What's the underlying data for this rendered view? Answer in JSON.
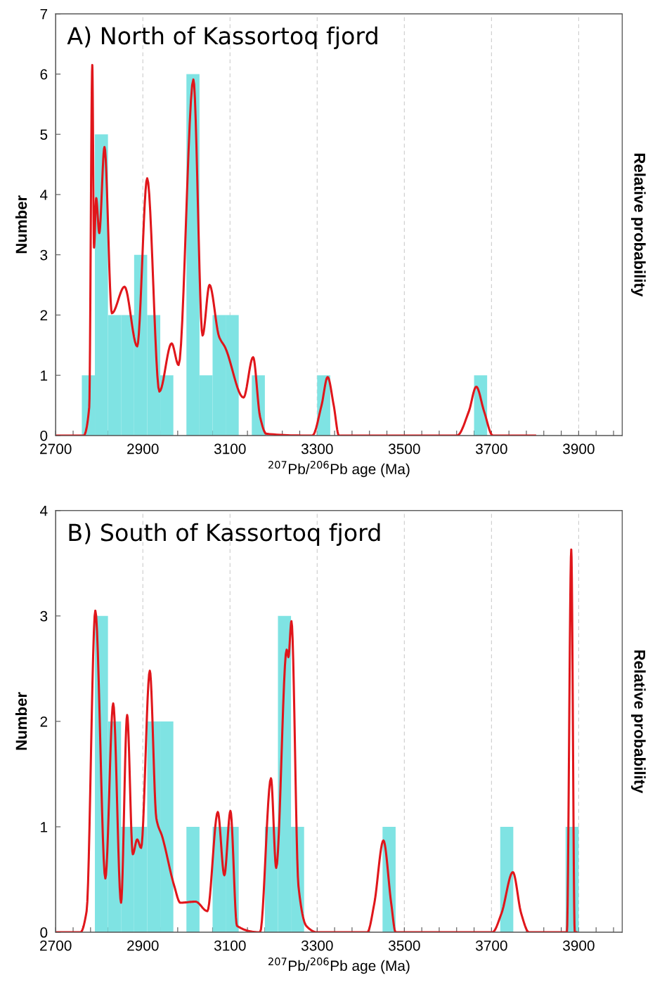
{
  "chart_data": [
    {
      "type": "histogram",
      "title": "A) North of Kassortoq fjord",
      "xlabel": "$^{207}$Pb/$^{206}$Pb age (Ma)",
      "ylabel": "Number",
      "y2label": "Relative probability",
      "xlim": [
        2700,
        4000
      ],
      "ylim": [
        0,
        7
      ],
      "xticks": [
        2700,
        {
          "value": 2740,
          "label": null
        },
        {
          "value": 2780,
          "label": null
        },
        {
          "value": 2820,
          "label": null
        },
        {
          "value": 2860,
          "label": null
        },
        2900,
        {
          "value": 2940,
          "label": null
        },
        {
          "value": 2980,
          "label": null
        },
        {
          "value": 3020,
          "label": null
        },
        {
          "value": 3060,
          "label": null
        },
        3100,
        {
          "value": 3140,
          "label": null
        },
        {
          "value": 3180,
          "label": null
        },
        {
          "value": 3220,
          "label": null
        },
        {
          "value": 3260,
          "label": null
        },
        3300,
        {
          "value": 3340,
          "label": null
        },
        {
          "value": 3380,
          "label": null
        },
        {
          "value": 3420,
          "label": null
        },
        {
          "value": 3460,
          "label": null
        },
        3500,
        {
          "value": 3540,
          "label": null
        },
        {
          "value": 3580,
          "label": null
        },
        {
          "value": 3620,
          "label": null
        },
        {
          "value": 3660,
          "label": null
        },
        3700,
        {
          "value": 3740,
          "label": null
        },
        {
          "value": 3780,
          "label": null
        },
        {
          "value": 3820,
          "label": null
        },
        {
          "value": 3860,
          "label": null
        },
        3900,
        {
          "value": 3940,
          "label": null
        },
        {
          "value": 3980,
          "label": null
        }
      ],
      "yticks": [
        0,
        1,
        2,
        3,
        4,
        5,
        6,
        7
      ],
      "grid": "x",
      "series": [
        {
          "type": "histogram",
          "color": "#7fe3e3",
          "bins": [
            2760,
            2790,
            2820,
            2850,
            2880,
            2910,
            2940,
            2970,
            3000,
            3030,
            3060,
            3090,
            3120,
            3150,
            3180,
            3210,
            3240,
            3270,
            3300,
            3330,
            3360,
            3390,
            3420,
            3450,
            3480,
            3510,
            3540,
            3570,
            3600,
            3630,
            3660,
            3690
          ],
          "values": [
            1,
            5,
            2,
            2,
            3,
            2,
            1,
            0,
            6,
            1,
            2,
            2,
            0,
            1,
            0,
            0,
            0,
            0,
            1,
            0,
            0,
            0,
            0,
            0,
            0,
            0,
            0,
            0,
            0,
            0,
            1
          ]
        },
        {
          "type": "line",
          "color": "#e0161b",
          "x": [
            2700,
            2764,
            2777,
            2784,
            2788,
            2793,
            2800,
            2812,
            2829,
            2858,
            2887,
            2910,
            2938,
            2966,
            2982,
            3016,
            3037,
            3053,
            3075,
            3089,
            3131,
            3153,
            3169,
            3183,
            3280,
            3289,
            3310,
            3324,
            3338,
            3350,
            3621,
            3648,
            3665,
            3683,
            3703,
            3800
          ],
          "values": [
            0,
            0,
            0.47,
            6.15,
            3.12,
            3.94,
            3.36,
            4.79,
            2.03,
            2.47,
            1.48,
            4.27,
            0.73,
            1.53,
            1.17,
            5.91,
            1.66,
            2.5,
            1.64,
            1.46,
            0.63,
            1.3,
            0.31,
            0.03,
            0,
            0,
            0.5,
            0.97,
            0.5,
            0,
            0,
            0.4,
            0.81,
            0.4,
            0,
            0
          ]
        }
      ]
    },
    {
      "type": "histogram",
      "title": "B) South of Kassortoq fjord",
      "xlabel": "$^{207}$Pb/$^{206}$Pb age (Ma)",
      "ylabel": "Number",
      "y2label": "Relative probability",
      "xlim": [
        2700,
        4000
      ],
      "ylim": [
        0,
        4
      ],
      "xticks": [
        2700,
        {
          "value": 2740,
          "label": null
        },
        {
          "value": 2780,
          "label": null
        },
        {
          "value": 2820,
          "label": null
        },
        {
          "value": 2860,
          "label": null
        },
        2900,
        {
          "value": 2940,
          "label": null
        },
        {
          "value": 2980,
          "label": null
        },
        {
          "value": 3020,
          "label": null
        },
        {
          "value": 3060,
          "label": null
        },
        3100,
        {
          "value": 3140,
          "label": null
        },
        {
          "value": 3180,
          "label": null
        },
        {
          "value": 3220,
          "label": null
        },
        {
          "value": 3260,
          "label": null
        },
        3300,
        {
          "value": 3340,
          "label": null
        },
        {
          "value": 3380,
          "label": null
        },
        {
          "value": 3420,
          "label": null
        },
        {
          "value": 3460,
          "label": null
        },
        3500,
        {
          "value": 3540,
          "label": null
        },
        {
          "value": 3580,
          "label": null
        },
        {
          "value": 3620,
          "label": null
        },
        {
          "value": 3660,
          "label": null
        },
        3700,
        {
          "value": 3740,
          "label": null
        },
        {
          "value": 3780,
          "label": null
        },
        {
          "value": 3820,
          "label": null
        },
        {
          "value": 3860,
          "label": null
        },
        3900,
        {
          "value": 3940,
          "label": null
        },
        {
          "value": 3980,
          "label": null
        }
      ],
      "yticks": [
        0,
        1,
        2,
        3,
        4
      ],
      "grid": "x",
      "series": [
        {
          "type": "histogram",
          "color": "#7fe3e3",
          "bins": [
            2790,
            2820,
            2850,
            2880,
            2910,
            2940,
            2970,
            3000,
            3030,
            3060,
            3090,
            3120,
            3150,
            3180,
            3210,
            3240,
            3270,
            3300,
            3330,
            3360,
            3390,
            3420,
            3450,
            3480,
            3510,
            3540,
            3570,
            3600,
            3630,
            3660,
            3690,
            3720,
            3750,
            3780,
            3810,
            3840,
            3870,
            3900
          ],
          "values": [
            3,
            2,
            1,
            1,
            2,
            2,
            0,
            1,
            0,
            1,
            1,
            0,
            0,
            1,
            3,
            1,
            0,
            0,
            0,
            0,
            0,
            0,
            1,
            0,
            0,
            0,
            0,
            0,
            0,
            0,
            0,
            1,
            0,
            0,
            0,
            0,
            1
          ]
        },
        {
          "type": "line",
          "color": "#e0161b",
          "x": [
            2700,
            2757,
            2771,
            2791,
            2814,
            2832,
            2850,
            2864,
            2877,
            2887,
            2896,
            2916,
            2931,
            2945,
            2972,
            2986,
            3021,
            3048,
            3072,
            3087,
            3101,
            3116,
            3169,
            3194,
            3206,
            3230,
            3234,
            3241,
            3257,
            3275,
            3300,
            3415,
            3431,
            3452,
            3470,
            3480,
            3702,
            3723,
            3749,
            3768,
            3786,
            3873,
            3883,
            3891,
            3895
          ],
          "values": [
            0,
            0,
            0.2,
            3.05,
            0.51,
            2.17,
            0.28,
            2.06,
            0.74,
            0.88,
            0.8,
            2.48,
            1.08,
            0.9,
            0.44,
            0.28,
            0.29,
            0.2,
            1.14,
            0.54,
            1.15,
            0.06,
            0,
            1.46,
            0.61,
            2.68,
            2.61,
            2.95,
            0.44,
            0.06,
            0,
            0,
            0.27,
            0.87,
            0.27,
            0,
            0,
            0.18,
            0.57,
            0.18,
            0,
            0,
            3.63,
            0,
            0
          ]
        }
      ]
    }
  ]
}
